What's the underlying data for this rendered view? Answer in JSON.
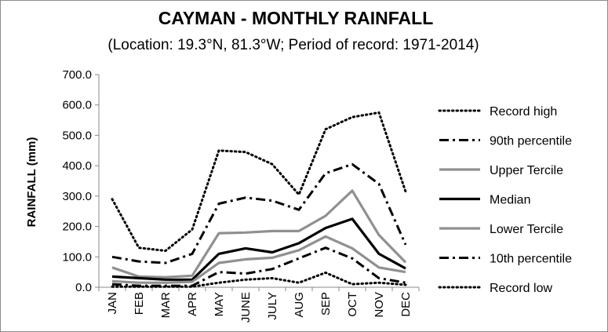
{
  "chart_data": {
    "type": "line",
    "title": "CAYMAN - MONTHLY RAINFALL",
    "subtitle": "(Location: 19.3°N, 81.3°W; Period of record: 1971-2014)",
    "ylabel": "RAINFALL (mm)",
    "xlabel": "",
    "ylim": [
      0,
      700
    ],
    "yticks": [
      "0.0",
      "100.0",
      "200.0",
      "300.0",
      "400.0",
      "500.0",
      "600.0",
      "700.0"
    ],
    "grid": false,
    "legend_position": "right",
    "categories": [
      "JAN",
      "FEB",
      "MAR",
      "APR",
      "MAY",
      "JUNE",
      "JULY",
      "AUG",
      "SEP",
      "OCT",
      "NOV",
      "DEC"
    ],
    "series": [
      {
        "name": "Record high",
        "style": "dotted",
        "color": "#000000",
        "values": [
          290,
          130,
          120,
          190,
          450,
          445,
          405,
          305,
          520,
          560,
          575,
          315
        ]
      },
      {
        "name": "90th percentile",
        "style": "dashdot",
        "color": "#000000",
        "values": [
          100,
          85,
          80,
          110,
          275,
          295,
          285,
          255,
          375,
          405,
          340,
          140
        ]
      },
      {
        "name": "Upper Tercile",
        "style": "solid",
        "color": "#909090",
        "values": [
          65,
          35,
          33,
          38,
          178,
          180,
          185,
          185,
          235,
          318,
          172,
          82
        ]
      },
      {
        "name": "Median",
        "style": "solid",
        "color": "#000000",
        "values": [
          35,
          30,
          25,
          25,
          110,
          128,
          115,
          145,
          195,
          225,
          110,
          62
        ]
      },
      {
        "name": "Lower Tercile",
        "style": "solid",
        "color": "#909090",
        "values": [
          20,
          15,
          15,
          18,
          80,
          92,
          97,
          122,
          167,
          128,
          65,
          50
        ]
      },
      {
        "name": "10th percentile",
        "style": "dashdot",
        "color": "#000000",
        "values": [
          10,
          5,
          5,
          5,
          50,
          45,
          60,
          95,
          130,
          95,
          30,
          15
        ]
      },
      {
        "name": "Record low",
        "style": "dotted",
        "color": "#000000",
        "values": [
          2,
          2,
          2,
          2,
          15,
          25,
          30,
          15,
          48,
          10,
          15,
          8
        ]
      }
    ]
  }
}
